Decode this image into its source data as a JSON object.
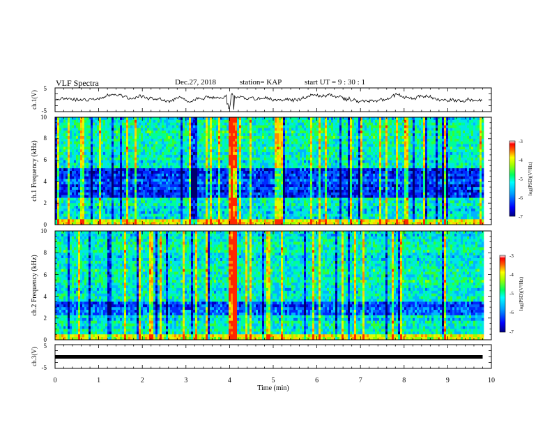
{
  "header": {
    "title": "VLF Spectra",
    "date": "Dec.27, 2018",
    "station": "station= KAP",
    "start_ut": "start UT =   9 : 30 : 1"
  },
  "colors": {
    "palette": [
      "#000080",
      "#0000ff",
      "#0080ff",
      "#00ffff",
      "#00ff80",
      "#80ff00",
      "#ffff00",
      "#ff8000",
      "#ff0000",
      "#ffffff"
    ]
  },
  "chart_data": [
    {
      "type": "line",
      "name": "ch1-waveform-panel",
      "ylabel": "ch.1(V)",
      "ylim": [
        -5,
        5
      ],
      "yticks": [
        "5",
        "-5"
      ],
      "xlim": [
        0,
        10
      ]
    },
    {
      "type": "heatmap",
      "name": "ch1-spectrogram",
      "ylabel": "ch.1 Frequency (kHz)",
      "ylim": [
        0,
        10
      ],
      "yticks": [
        "0",
        "2",
        "4",
        "6",
        "8",
        "10"
      ],
      "xlim": [
        0,
        10
      ],
      "data_extent_min": 9.8,
      "colorbar": {
        "label": "log(PSD)(V²/Hz)",
        "range": [
          -7,
          -3
        ],
        "ticks": [
          "-3",
          "-4",
          "-5",
          "-6",
          "-7"
        ]
      }
    },
    {
      "type": "heatmap",
      "name": "ch2-spectrogram",
      "ylabel": "ch.2 Frequency (kHz)",
      "ylim": [
        0,
        10
      ],
      "yticks": [
        "0",
        "2",
        "4",
        "6",
        "8",
        "10"
      ],
      "xlim": [
        0,
        10
      ],
      "data_extent_min": 9.8,
      "colorbar": {
        "label": "log(PSD)(V²/Hz)",
        "range": [
          -7,
          -3
        ],
        "ticks": [
          "-3",
          "-4",
          "-5",
          "-6",
          "-7"
        ]
      }
    },
    {
      "type": "line",
      "name": "ch3-waveform-panel",
      "ylabel": "ch.3(V)",
      "ylim": [
        -5,
        5
      ],
      "yticks": [
        "5",
        "-5"
      ],
      "xlim": [
        0,
        10
      ],
      "constant_value": 0
    }
  ],
  "xaxis": {
    "label": "Time (min)",
    "ticks": [
      "0",
      "1",
      "2",
      "3",
      "4",
      "5",
      "6",
      "7",
      "8",
      "9",
      "10"
    ]
  }
}
